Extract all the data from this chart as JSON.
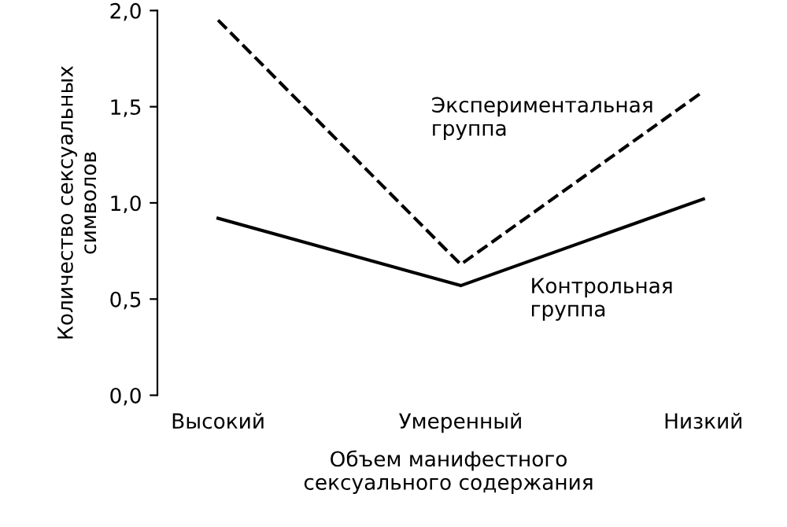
{
  "chart_data": {
    "type": "line",
    "xlabel": "Объем манифестного\nсексуального содержания",
    "ylabel": "Количество сексуальных\nсимволов",
    "categories": [
      "Высокий",
      "Умеренный",
      "Низкий"
    ],
    "series": [
      {
        "name": "Экспериментальная\nгруппа",
        "color": "#000000",
        "line_style": "dashed",
        "values": [
          1.95,
          0.68,
          1.58
        ]
      },
      {
        "name": "Контрольная\nгруппа",
        "color": "#000000",
        "line_style": "solid",
        "values": [
          0.92,
          0.57,
          1.02
        ]
      }
    ],
    "ylim": [
      0,
      2.0
    ],
    "yticks": [
      {
        "value": 0,
        "label": "0,0"
      },
      {
        "value": 0.5,
        "label": "0,5"
      },
      {
        "value": 1.0,
        "label": "1,0"
      },
      {
        "value": 1.5,
        "label": "1,5"
      },
      {
        "value": 2.0,
        "label": "2,0"
      }
    ],
    "grid": false,
    "marker": "none"
  }
}
